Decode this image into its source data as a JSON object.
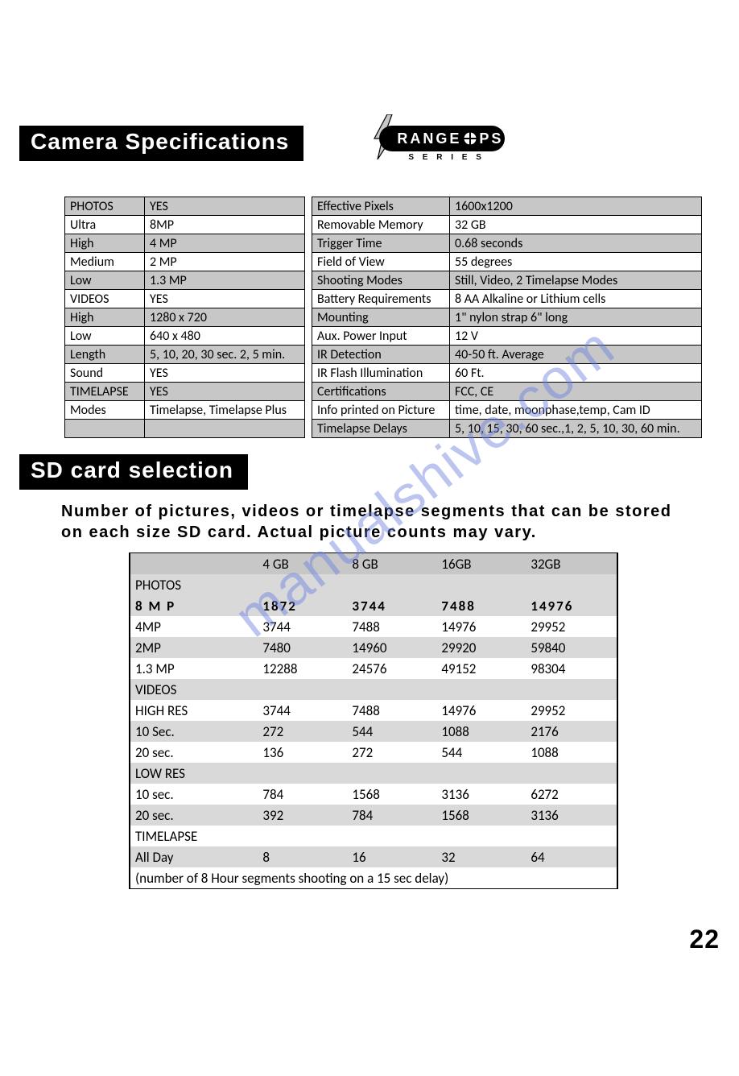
{
  "colors": {
    "background": "#ffffff",
    "section_title_bg": "#000000",
    "section_title_text": "#ffffff",
    "table_border": "#000000",
    "table_shade": "#c7c7c7",
    "sd_shade": "#d9d9d9",
    "watermark": "#6a7fe0"
  },
  "logo": {
    "text_left": "RANGE",
    "text_right": "PS",
    "series": "S E R I E S"
  },
  "watermark_text": "manualshive.com",
  "page_number": "22",
  "headings": {
    "camera_spec": "Camera Specifications",
    "sd_card": "SD card selection"
  },
  "sd_caption": "Number of pictures, videos or timelapse segments that can be stored on each size SD card.  Actual picture counts may vary.",
  "spec_left": [
    {
      "k": "PHOTOS",
      "v": "YES",
      "shade": true
    },
    {
      "k": "Ultra",
      "v": "8MP",
      "shade": false
    },
    {
      "k": "High",
      "v": "4 MP",
      "shade": true
    },
    {
      "k": "Medium",
      "v": "2 MP",
      "shade": false
    },
    {
      "k": "Low",
      "v": "1.3 MP",
      "shade": true
    },
    {
      "k": "VIDEOS",
      "v": "YES",
      "shade": false
    },
    {
      "k": "High",
      "v": "1280 x 720",
      "shade": true
    },
    {
      "k": "Low",
      "v": "640 x 480",
      "shade": false
    },
    {
      "k": "Length",
      "v": "5, 10, 20, 30 sec. 2, 5 min.",
      "shade": true
    },
    {
      "k": "Sound",
      "v": "YES",
      "shade": false
    },
    {
      "k": "TIMELAPSE",
      "v": "YES",
      "shade": true
    },
    {
      "k": "Modes",
      "v": "Timelapse, Timelapse Plus",
      "shade": false
    },
    {
      "k": "",
      "v": "",
      "shade": true
    }
  ],
  "spec_right": [
    {
      "k": "Effective Pixels",
      "v": "1600x1200",
      "shade": true
    },
    {
      "k": "Removable Memory",
      "v": "32 GB",
      "shade": false
    },
    {
      "k": "Trigger Time",
      "v": "0.68 seconds",
      "shade": true
    },
    {
      "k": "Field of View",
      "v": "55 degrees",
      "shade": false
    },
    {
      "k": "Shooting Modes",
      "v": "Still, Video, 2 Timelapse Modes",
      "shade": true
    },
    {
      "k": "Battery Requirements",
      "v": "8 AA Alkaline or Lithium cells",
      "shade": false
    },
    {
      "k": "Mounting",
      "v": "1\" nylon strap 6\" long",
      "shade": true
    },
    {
      "k": "Aux. Power Input",
      "v": "12 V",
      "shade": false
    },
    {
      "k": "IR Detection",
      "v": "40-50 ft. Average",
      "shade": true
    },
    {
      "k": "IR Flash Illumination",
      "v": "60 Ft.",
      "shade": false
    },
    {
      "k": "Certifications",
      "v": "FCC, CE",
      "shade": true
    },
    {
      "k": "Info printed on Picture",
      "v": "time, date, moonphase,temp, Cam ID",
      "shade": false
    },
    {
      "k": "Timelapse Delays",
      "v": "5, 10, 15, 30, 60 sec.,1, 2, 5, 10, 30, 60 min.",
      "shade": true
    }
  ],
  "sd_table": {
    "columns": [
      "",
      "4 GB",
      "8 GB",
      "16GB",
      "32GB"
    ],
    "rows": [
      {
        "cells": [
          "PHOTOS",
          "",
          "",
          "",
          ""
        ],
        "type": "section"
      },
      {
        "cells": [
          "8 M P",
          "1872",
          "3744",
          "7488",
          "14976"
        ],
        "type": "bold_shade"
      },
      {
        "cells": [
          "4MP",
          "3744",
          "7488",
          "14976",
          "29952"
        ],
        "type": "plain"
      },
      {
        "cells": [
          "2MP",
          "7480",
          "14960",
          "29920",
          "59840"
        ],
        "type": "shade"
      },
      {
        "cells": [
          "1.3 MP",
          "12288",
          "24576",
          "49152",
          "98304"
        ],
        "type": "plain"
      },
      {
        "cells": [
          "VIDEOS",
          "",
          "",
          "",
          ""
        ],
        "type": "section"
      },
      {
        "cells": [
          "HIGH RES",
          "3744",
          "7488",
          "14976",
          "29952"
        ],
        "type": "plain"
      },
      {
        "cells": [
          "10 Sec.",
          "272",
          "544",
          "1088",
          "2176"
        ],
        "type": "shade"
      },
      {
        "cells": [
          "20 sec.",
          "136",
          "272",
          "544",
          "1088"
        ],
        "type": "plain"
      },
      {
        "cells": [
          "LOW RES",
          "",
          "",
          "",
          ""
        ],
        "type": "section"
      },
      {
        "cells": [
          "10 sec.",
          "784",
          "1568",
          "3136",
          "6272"
        ],
        "type": "plain"
      },
      {
        "cells": [
          "20 sec.",
          "392",
          "784",
          "1568",
          "3136"
        ],
        "type": "shade"
      },
      {
        "cells": [
          "TIMELAPSE",
          "",
          "",
          "",
          ""
        ],
        "type": "plain"
      },
      {
        "cells": [
          "All Day",
          "8",
          "16",
          "32",
          "64"
        ],
        "type": "shade"
      },
      {
        "cells": [
          "(number of 8 Hour segments shooting on a 15 sec delay)",
          "",
          "",
          "",
          ""
        ],
        "type": "footnote"
      }
    ]
  }
}
